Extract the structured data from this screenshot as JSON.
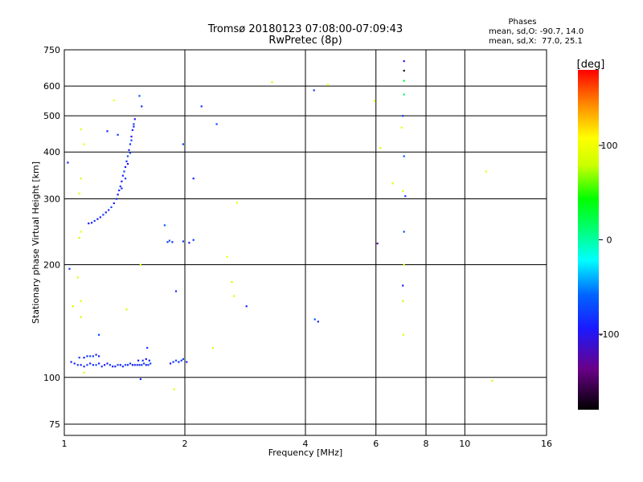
{
  "chart_data": {
    "type": "scatter",
    "title": "Tromsø 20180123 07:08:00-07:09:43",
    "subtitle": "RwPretec (8p)",
    "xlabel": "Frequency [MHz]",
    "ylabel": "Stationary phase Virtual Height [km]",
    "x_scale": "log",
    "y_scale": "log",
    "xlim": [
      1,
      16
    ],
    "ylim": [
      70,
      750
    ],
    "x_ticks": [
      1,
      2,
      4,
      6,
      8,
      10,
      16
    ],
    "y_ticks": [
      75,
      100,
      200,
      300,
      400,
      500,
      600,
      750
    ],
    "grid": true,
    "stats": {
      "heading": "Phases",
      "line_o": "mean, sd,O: -90.7, 14.0",
      "line_x": "mean, sd,X:  77.0, 25.1"
    },
    "colorbar": {
      "label": "[deg]",
      "range": [
        -180,
        180
      ],
      "ticks": [
        -100,
        0,
        100
      ],
      "tick_labels": [
        "-100",
        "0",
        "100"
      ]
    },
    "trace_low": {
      "phase": -100,
      "points": [
        [
          1.04,
          110
        ],
        [
          1.06,
          109
        ],
        [
          1.08,
          108
        ],
        [
          1.1,
          108
        ],
        [
          1.12,
          107
        ],
        [
          1.14,
          108
        ],
        [
          1.16,
          109
        ],
        [
          1.18,
          108
        ],
        [
          1.2,
          108
        ],
        [
          1.22,
          109
        ],
        [
          1.24,
          107
        ],
        [
          1.26,
          108
        ],
        [
          1.28,
          109
        ],
        [
          1.3,
          108
        ],
        [
          1.32,
          107
        ],
        [
          1.34,
          107
        ],
        [
          1.36,
          108
        ],
        [
          1.38,
          108
        ],
        [
          1.4,
          107
        ],
        [
          1.42,
          108
        ],
        [
          1.44,
          108
        ],
        [
          1.46,
          109
        ],
        [
          1.48,
          108
        ],
        [
          1.5,
          108
        ],
        [
          1.52,
          108
        ],
        [
          1.54,
          108
        ],
        [
          1.56,
          108
        ],
        [
          1.58,
          109
        ],
        [
          1.6,
          108
        ],
        [
          1.62,
          108
        ],
        [
          1.64,
          109
        ],
        [
          1.53,
          111
        ],
        [
          1.57,
          111
        ],
        [
          1.6,
          112
        ],
        [
          1.63,
          111
        ],
        [
          1.18,
          114
        ],
        [
          1.2,
          115
        ],
        [
          1.22,
          114
        ],
        [
          1.09,
          113
        ],
        [
          1.12,
          113
        ],
        [
          1.14,
          114
        ],
        [
          1.16,
          114
        ]
      ]
    },
    "trace_high": {
      "phase": -100,
      "points": [
        [
          1.15,
          258
        ],
        [
          1.17,
          259
        ],
        [
          1.19,
          262
        ],
        [
          1.21,
          265
        ],
        [
          1.23,
          268
        ],
        [
          1.25,
          272
        ],
        [
          1.27,
          276
        ],
        [
          1.29,
          280
        ],
        [
          1.31,
          285
        ],
        [
          1.33,
          292
        ],
        [
          1.35,
          300
        ],
        [
          1.36,
          308
        ],
        [
          1.37,
          316
        ],
        [
          1.38,
          324
        ],
        [
          1.39,
          334
        ],
        [
          1.4,
          346
        ],
        [
          1.41,
          355
        ],
        [
          1.42,
          365
        ],
        [
          1.43,
          378
        ],
        [
          1.44,
          390
        ],
        [
          1.45,
          405
        ],
        [
          1.46,
          420
        ],
        [
          1.47,
          440
        ],
        [
          1.48,
          458
        ],
        [
          1.49,
          475
        ],
        [
          1.5,
          490
        ],
        [
          1.39,
          320
        ],
        [
          1.42,
          340
        ],
        [
          1.44,
          372
        ],
        [
          1.46,
          398
        ],
        [
          1.47,
          430
        ],
        [
          1.49,
          468
        ]
      ]
    },
    "trace_mid": {
      "phase": -95,
      "points": [
        [
          1.84,
          109
        ],
        [
          1.87,
          110
        ],
        [
          1.9,
          111
        ],
        [
          1.93,
          110
        ],
        [
          1.96,
          111
        ],
        [
          1.98,
          112
        ],
        [
          2.02,
          110
        ],
        [
          1.81,
          230
        ],
        [
          1.83,
          232
        ],
        [
          1.86,
          230
        ],
        [
          1.98,
          231
        ],
        [
          2.05,
          229
        ],
        [
          2.1,
          233
        ]
      ]
    },
    "scattered_o": {
      "phase": -95,
      "points": [
        [
          1.02,
          375
        ],
        [
          1.03,
          195
        ],
        [
          1.22,
          130
        ],
        [
          1.28,
          455
        ],
        [
          1.36,
          445
        ],
        [
          1.54,
          565
        ],
        [
          1.56,
          530
        ],
        [
          1.61,
          120
        ],
        [
          1.78,
          255
        ],
        [
          1.9,
          170
        ],
        [
          1.98,
          420
        ],
        [
          2.1,
          340
        ],
        [
          2.2,
          530
        ],
        [
          2.4,
          475
        ],
        [
          2.85,
          155
        ],
        [
          4.2,
          585
        ],
        [
          4.22,
          143
        ],
        [
          4.3,
          141
        ],
        [
          7.0,
          500
        ],
        [
          7.05,
          390
        ],
        [
          7.1,
          305
        ],
        [
          7.05,
          245
        ],
        [
          7.0,
          176
        ],
        [
          1.55,
          99
        ]
      ]
    },
    "scattered_x": {
      "phase": 90,
      "points": [
        [
          1.05,
          155
        ],
        [
          1.08,
          185
        ],
        [
          1.1,
          160
        ],
        [
          1.1,
          145
        ],
        [
          1.12,
          103
        ],
        [
          1.33,
          550
        ],
        [
          1.43,
          152
        ],
        [
          1.55,
          200
        ],
        [
          1.88,
          93
        ],
        [
          2.35,
          120
        ],
        [
          2.55,
          210
        ],
        [
          2.62,
          180
        ],
        [
          2.65,
          165
        ],
        [
          2.7,
          293
        ],
        [
          3.3,
          615
        ],
        [
          4.55,
          605
        ],
        [
          5.95,
          548
        ],
        [
          6.15,
          410
        ],
        [
          6.6,
          330
        ],
        [
          6.95,
          465
        ],
        [
          7.0,
          315
        ],
        [
          7.05,
          200
        ],
        [
          7.0,
          160
        ],
        [
          7.02,
          130
        ],
        [
          11.3,
          355
        ],
        [
          11.7,
          98
        ],
        [
          1.1,
          460
        ],
        [
          1.12,
          420
        ],
        [
          1.1,
          340
        ],
        [
          1.09,
          310
        ],
        [
          1.1,
          245
        ],
        [
          1.09,
          236
        ]
      ]
    },
    "top_points": [
      {
        "f": 7.05,
        "h": 700,
        "phase": -110
      },
      {
        "f": 7.05,
        "h": 660,
        "phase": -170
      },
      {
        "f": 7.05,
        "h": 620,
        "phase": 20
      },
      {
        "f": 7.05,
        "h": 570,
        "phase": 0
      },
      {
        "f": 6.05,
        "h": 228,
        "phase": -140
      }
    ]
  }
}
